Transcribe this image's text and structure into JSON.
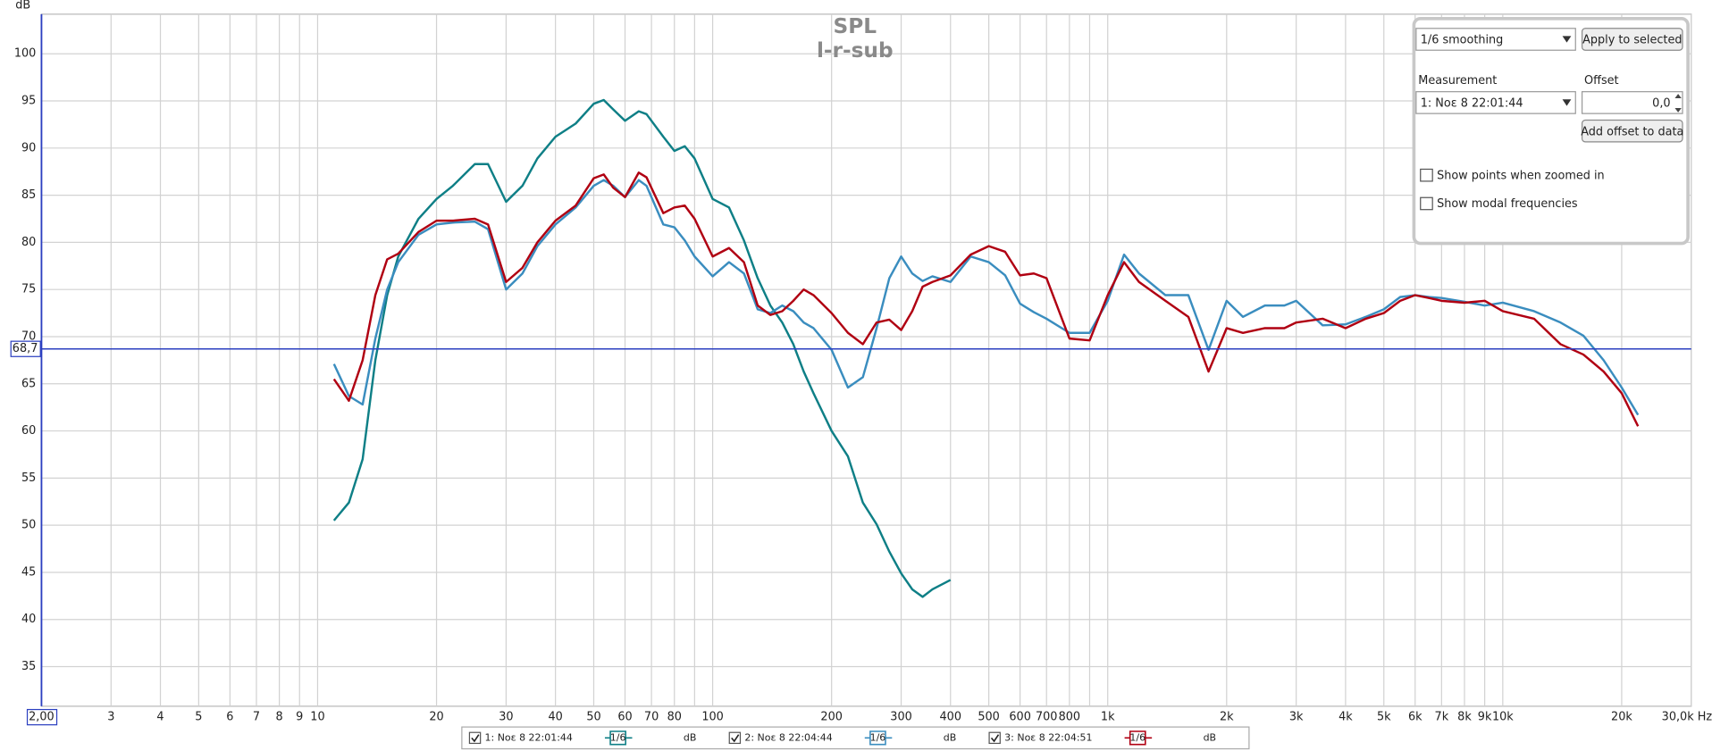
{
  "chart_data": {
    "type": "line",
    "title": "SPL",
    "subtitle": "l-r-sub",
    "y_label": "dB",
    "xscale": "log",
    "grid": true,
    "xlim": [
      2,
      30000
    ],
    "ylim": [
      30.8,
      104.2
    ],
    "xticks": [
      {
        "value": 2,
        "label": "2,00"
      },
      3,
      4,
      5,
      6,
      7,
      8,
      9,
      10,
      20,
      30,
      40,
      50,
      60,
      70,
      80,
      {
        "value": 90,
        "label": null
      },
      100,
      200,
      300,
      400,
      500,
      600,
      700,
      800,
      {
        "value": 900,
        "label": null
      },
      {
        "value": 1000,
        "label": "1k"
      },
      {
        "value": 2000,
        "label": "2k"
      },
      {
        "value": 3000,
        "label": "3k"
      },
      {
        "value": 4000,
        "label": "4k"
      },
      {
        "value": 5000,
        "label": "5k"
      },
      {
        "value": 6000,
        "label": "6k"
      },
      {
        "value": 7000,
        "label": "7k"
      },
      {
        "value": 8000,
        "label": "8k"
      },
      {
        "value": 9000,
        "label": "9k"
      },
      {
        "value": 10000,
        "label": "10k"
      },
      {
        "value": 20000,
        "label": "20k"
      },
      {
        "value": 30000,
        "label": "30,0k Hz"
      }
    ],
    "yticks": [
      35,
      40,
      45,
      50,
      55,
      60,
      65,
      70,
      75,
      80,
      85,
      90,
      95,
      100
    ],
    "cursor_level": {
      "value": 68.7,
      "label": "68,7"
    },
    "x": [
      11,
      12,
      13,
      14,
      15,
      16,
      18,
      20,
      22,
      25,
      27,
      30,
      33,
      36,
      40,
      45,
      50,
      53,
      56,
      60,
      65,
      68,
      75,
      80,
      85,
      90,
      100,
      110,
      120,
      130,
      140,
      150,
      160,
      170,
      180,
      200,
      220,
      240,
      260,
      280,
      300,
      320,
      340,
      360,
      400,
      450,
      500,
      550,
      600,
      650,
      700,
      800,
      900,
      1000,
      1100,
      1200,
      1400,
      1600,
      1800,
      2000,
      2200,
      2500,
      2800,
      3000,
      3500,
      4000,
      4500,
      5000,
      5500,
      6000,
      6500,
      7000,
      8000,
      9000,
      10000,
      12000,
      14000,
      16000,
      18000,
      20000,
      22000
    ],
    "series": [
      {
        "name": "1: Νοε 8 22:01:44",
        "color": "#0e7f86",
        "smoothing": "1/6",
        "unit": "dB",
        "values": [
          50.5,
          52.4,
          57,
          67.5,
          74.4,
          78.5,
          82.5,
          84.6,
          86,
          88.3,
          88.3,
          84.3,
          86,
          88.9,
          91.2,
          92.6,
          94.7,
          95.1,
          94.1,
          92.9,
          93.9,
          93.6,
          91.2,
          89.7,
          90.2,
          88.9,
          84.6,
          83.7,
          80.2,
          76.2,
          73.3,
          71.5,
          69.2,
          66.3,
          64,
          60,
          57.3,
          52.4,
          50.1,
          47.2,
          44.9,
          43.2,
          42.4,
          43.2,
          44.2,
          null,
          null,
          null,
          null,
          null,
          null,
          null,
          null,
          null,
          null,
          null,
          null,
          null,
          null,
          null,
          null,
          null,
          null,
          null,
          null,
          null,
          null,
          null,
          null,
          null,
          null,
          null,
          null,
          null,
          null,
          null,
          null,
          null,
          null,
          null,
          null
        ]
      },
      {
        "name": "2: Νοε 8 22:04:44",
        "color": "#3a8dbf",
        "smoothing": "1/6",
        "unit": "dB",
        "values": [
          67.1,
          63.7,
          62.8,
          69.8,
          75,
          77.9,
          80.8,
          81.9,
          82.1,
          82.2,
          81.4,
          75,
          76.7,
          79.6,
          81.9,
          83.7,
          86,
          86.6,
          86,
          84.8,
          86.6,
          86,
          81.9,
          81.6,
          80.2,
          78.5,
          76.4,
          77.9,
          76.7,
          72.9,
          72.5,
          73.3,
          72.7,
          71.5,
          70.9,
          68.6,
          64.6,
          65.7,
          70.9,
          76.2,
          78.5,
          76.7,
          75.9,
          76.4,
          75.8,
          78.5,
          77.9,
          76.5,
          73.5,
          72.6,
          71.9,
          70.4,
          70.4,
          73.8,
          78.7,
          76.7,
          74.4,
          74.4,
          68.6,
          73.8,
          72.1,
          73.3,
          73.3,
          73.8,
          71.2,
          71.3,
          72.1,
          72.9,
          74.2,
          74.4,
          74.2,
          74.1,
          73.7,
          73.3,
          73.6,
          72.7,
          71.5,
          70.1,
          67.5,
          64.6,
          61.7
        ]
      },
      {
        "name": "3: Νοε 8 22:04:51",
        "color": "#b00012",
        "smoothing": "1/6",
        "unit": "dB",
        "values": [
          65.5,
          63.2,
          67.5,
          74.4,
          78.2,
          78.8,
          81.1,
          82.3,
          82.3,
          82.5,
          81.9,
          75.8,
          77.3,
          80,
          82.3,
          83.9,
          86.8,
          87.2,
          85.8,
          84.8,
          87.4,
          86.9,
          83.1,
          83.7,
          83.9,
          82.5,
          78.5,
          79.4,
          77.9,
          73.3,
          72.3,
          72.7,
          73.8,
          75,
          74.4,
          72.5,
          70.4,
          69.2,
          71.5,
          71.8,
          70.7,
          72.7,
          75.3,
          75.8,
          76.5,
          78.7,
          79.6,
          79,
          76.5,
          76.7,
          76.2,
          69.8,
          69.6,
          74.4,
          77.9,
          75.8,
          73.8,
          72.1,
          66.3,
          70.9,
          70.4,
          70.9,
          70.9,
          71.5,
          71.9,
          70.9,
          71.9,
          72.5,
          73.8,
          74.4,
          74.1,
          73.8,
          73.6,
          73.8,
          72.7,
          71.9,
          69.2,
          68.1,
          66.3,
          64,
          60.5
        ]
      }
    ]
  },
  "panel": {
    "smoothing": "1/6 smoothing",
    "apply": "Apply to selected",
    "measurement_label": "Measurement",
    "measurement": "1: Νοε 8 22:01:44",
    "offset_label": "Offset",
    "offset": "0,0",
    "add_offset": "Add offset to data",
    "show_points": "Show points when zoomed in",
    "show_modal": "Show modal frequencies"
  }
}
